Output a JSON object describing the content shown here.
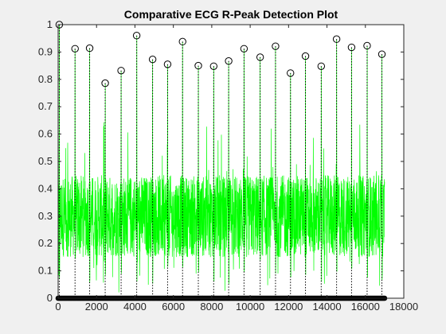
{
  "chart_data": {
    "type": "line",
    "title": "Comparative ECG R-Peak Detection Plot",
    "xlabel": "",
    "ylabel": "",
    "xlim": [
      0,
      18000
    ],
    "ylim": [
      0,
      1
    ],
    "xticks": [
      0,
      2000,
      4000,
      6000,
      8000,
      10000,
      12000,
      14000,
      16000,
      18000
    ],
    "yticks": [
      0,
      0.1,
      0.2,
      0.3,
      0.4,
      0.5,
      0.6,
      0.7,
      0.8,
      0.9,
      1
    ],
    "grid": false,
    "legend": "none",
    "signal_x_range": [
      0,
      17000
    ],
    "signal_baseline_band": [
      0.15,
      0.45
    ],
    "series": [
      {
        "role": "signal",
        "color": "#00ff00",
        "style": "solid"
      },
      {
        "role": "r-peaks",
        "color": "#000000",
        "marker": "open-circle",
        "style": "dotted-stems",
        "x": [
          60,
          880,
          1640,
          2450,
          3280,
          4090,
          4920,
          5700,
          6480,
          7300,
          8100,
          8880,
          9680,
          10520,
          11320,
          12100,
          12880,
          13700,
          14500,
          15280,
          16090,
          16860
        ],
        "y": [
          1.0,
          0.912,
          0.914,
          0.786,
          0.832,
          0.96,
          0.873,
          0.855,
          0.938,
          0.85,
          0.848,
          0.867,
          0.912,
          0.881,
          0.921,
          0.823,
          0.885,
          0.848,
          0.947,
          0.917,
          0.923,
          0.892
        ]
      },
      {
        "role": "baseline-markers",
        "color": "#000000",
        "marker": "filled-dot",
        "y_value": 0,
        "x_range": [
          0,
          17000
        ]
      }
    ],
    "colors": {
      "axes_background": "#ffffff",
      "figure_background": "#f0f0f0",
      "axis": "#262626",
      "signal": "#00ff00",
      "stem": "#000000",
      "baseline": "#000000"
    }
  }
}
